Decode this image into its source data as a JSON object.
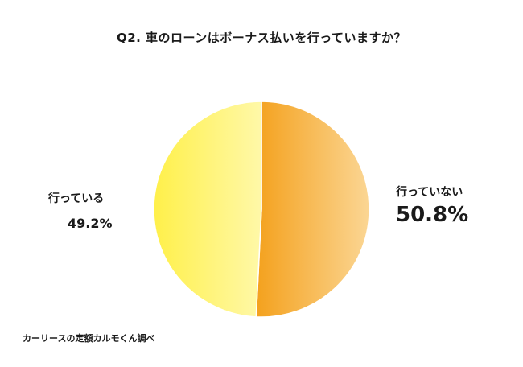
{
  "chart_data": {
    "type": "pie",
    "title": "Q2. 車のローンはボーナス払いを行っていますか？",
    "slices": [
      {
        "label": "行っていない",
        "value": 50.8,
        "value_text": "50.8%",
        "color": "#f4a11d",
        "color_light": "#fbd694"
      },
      {
        "label": "行っている",
        "value": 49.2,
        "value_text": "49.2%",
        "color": "#fff04a",
        "color_light": "#fff8a8"
      }
    ]
  },
  "source": "カーリースの定額カルモくん調べ"
}
